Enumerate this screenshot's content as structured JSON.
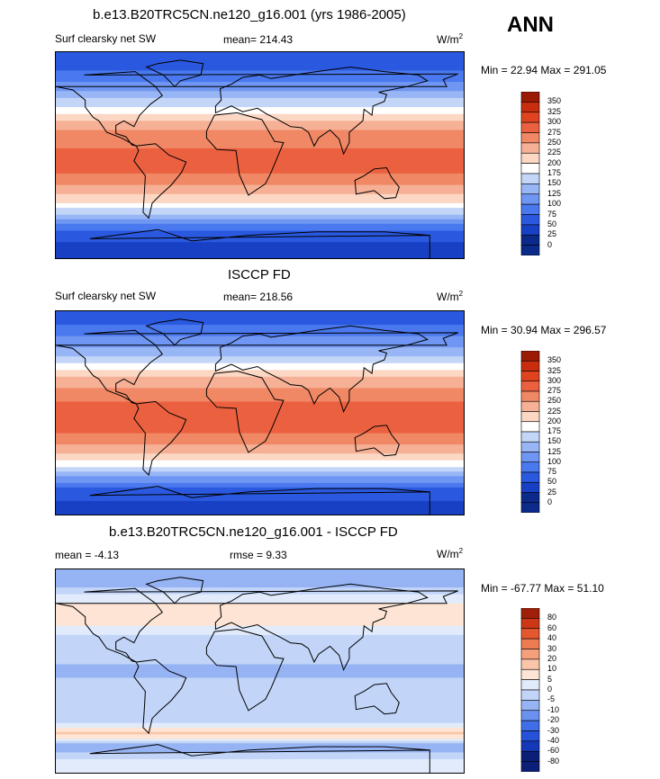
{
  "season_label": "ANN",
  "units_label": "W/m",
  "units_exp": "2",
  "colors": {
    "abs_scale": [
      "#0b2a8a",
      "#1840c4",
      "#2a59e0",
      "#4a78ee",
      "#6f96f2",
      "#98b6f5",
      "#c4d6f8",
      "#ffffff",
      "#fbd7c4",
      "#f6b095",
      "#f08865",
      "#eb6140",
      "#e0431f",
      "#c82d0d",
      "#9a1a06"
    ],
    "diff_scale": [
      "#0b1f78",
      "#1438b8",
      "#2552d8",
      "#3f6ee8",
      "#6a91f0",
      "#96b3f4",
      "#c2d5f8",
      "#e1ebfb",
      "#fde4d4",
      "#fac5a8",
      "#f4a07b",
      "#ee7b52",
      "#e4572f",
      "#cc3715",
      "#9f1f08"
    ]
  },
  "panels": [
    {
      "title": "b.e13.B20TRC5CN.ne120_g16.001 (yrs 1986-2005)",
      "left_label": "Surf clearsky net SW",
      "stat_label": "mean=",
      "stat_value": "214.43",
      "min_label": "Min =",
      "min_value": "22.94",
      "max_label": "Max =",
      "max_value": "291.05"
    },
    {
      "title": "ISCCP FD",
      "left_label": "Surf clearsky net SW",
      "stat_label": "mean=",
      "stat_value": "218.56",
      "min_label": "Min =",
      "min_value": "30.94",
      "max_label": "Max =",
      "max_value": "296.57"
    },
    {
      "title": "b.e13.B20TRC5CN.ne120_g16.001 - ISCCP FD",
      "left_label": "mean =",
      "left_value": "-4.13",
      "stat_label": "rmse =",
      "stat_value": "9.33",
      "min_label": "Min =",
      "min_value": "-67.77",
      "max_label": "Max =",
      "max_value": "51.10"
    }
  ],
  "chart_data": [
    {
      "type": "heatmap",
      "title": "b.e13.B20TRC5CN.ne120_g16.001 (yrs 1986-2005)",
      "variable": "Surf clearsky net SW",
      "units": "W/m2",
      "mean": 214.43,
      "min": 22.94,
      "max": 291.05,
      "colorbar_levels": [
        "350",
        "325",
        "300",
        "275",
        "250",
        "225",
        "200",
        "175",
        "150",
        "125",
        "100",
        "75",
        "50",
        "25",
        "0"
      ],
      "lat_bands": [
        {
          "lat": 80,
          "value": 60
        },
        {
          "lat": 60,
          "value": 110
        },
        {
          "lat": 45,
          "value": 170
        },
        {
          "lat": 30,
          "value": 230
        },
        {
          "lat": 15,
          "value": 270
        },
        {
          "lat": 0,
          "value": 280
        },
        {
          "lat": -15,
          "value": 275
        },
        {
          "lat": -30,
          "value": 240
        },
        {
          "lat": -45,
          "value": 180
        },
        {
          "lat": -55,
          "value": 120
        },
        {
          "lat": -65,
          "value": 70
        },
        {
          "lat": -80,
          "value": 40
        }
      ]
    },
    {
      "type": "heatmap",
      "title": "ISCCP FD",
      "variable": "Surf clearsky net SW",
      "units": "W/m2",
      "mean": 218.56,
      "min": 30.94,
      "max": 296.57,
      "colorbar_levels": [
        "350",
        "325",
        "300",
        "275",
        "250",
        "225",
        "200",
        "175",
        "150",
        "125",
        "100",
        "75",
        "50",
        "25",
        "0"
      ],
      "lat_bands": [
        {
          "lat": 80,
          "value": 70
        },
        {
          "lat": 60,
          "value": 120
        },
        {
          "lat": 45,
          "value": 175
        },
        {
          "lat": 30,
          "value": 235
        },
        {
          "lat": 15,
          "value": 272
        },
        {
          "lat": 0,
          "value": 283
        },
        {
          "lat": -15,
          "value": 278
        },
        {
          "lat": -30,
          "value": 242
        },
        {
          "lat": -45,
          "value": 185
        },
        {
          "lat": -55,
          "value": 125
        },
        {
          "lat": -65,
          "value": 75
        },
        {
          "lat": -80,
          "value": 45
        }
      ]
    },
    {
      "type": "heatmap",
      "title": "b.e13.B20TRC5CN.ne120_g16.001 - ISCCP FD",
      "variable": "difference",
      "units": "W/m2",
      "mean": -4.13,
      "rmse": 9.33,
      "min": -67.77,
      "max": 51.1,
      "colorbar_levels": [
        "80",
        "60",
        "40",
        "30",
        "20",
        "10",
        "5",
        "0",
        "-5",
        "-10",
        "-20",
        "-30",
        "-40",
        "-60",
        "-80"
      ],
      "lat_bands": [
        {
          "lat": 80,
          "value": -8
        },
        {
          "lat": 60,
          "value": 6
        },
        {
          "lat": 45,
          "value": 8
        },
        {
          "lat": 30,
          "value": -2
        },
        {
          "lat": 15,
          "value": -4
        },
        {
          "lat": 0,
          "value": -6
        },
        {
          "lat": -15,
          "value": -3
        },
        {
          "lat": -30,
          "value": -2
        },
        {
          "lat": -45,
          "value": -1
        },
        {
          "lat": -55,
          "value": 12
        },
        {
          "lat": -65,
          "value": -10
        },
        {
          "lat": -80,
          "value": 2
        }
      ]
    }
  ]
}
